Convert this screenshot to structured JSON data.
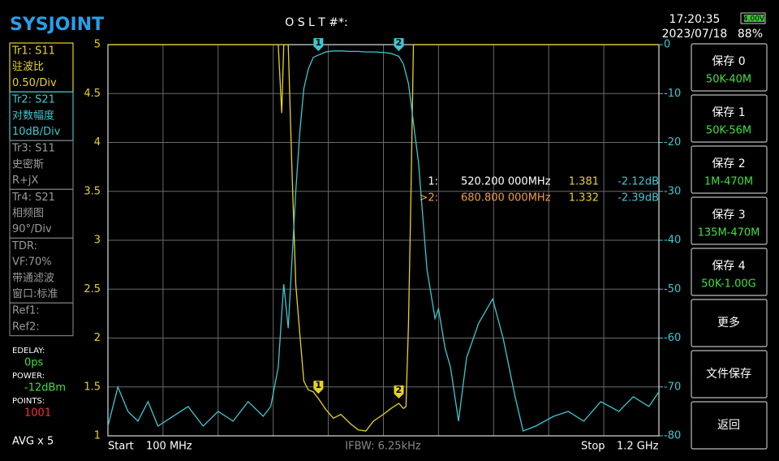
{
  "header": {
    "logo": "SYSJOINT",
    "status": "O S L T #*:",
    "time": "17:20:35",
    "date": "2023/07/18",
    "battery": "4.00V",
    "battery_level": "88%"
  },
  "left_panel": {
    "groups": [
      [
        "Tr1:   S11",
        "驻波比",
        "0.50/Div"
      ],
      [
        "Tr2:   S21",
        "对数幅度",
        "10dB/Div"
      ],
      [
        "Tr3:   S11",
        "史密斯",
        "R+jX"
      ],
      [
        "Tr4:   S21",
        "相频图",
        "90°/Div"
      ],
      [
        "TDR:",
        "VF:70%",
        "带通滤波",
        "窗口:标准"
      ],
      [
        "Ref1:",
        "Ref2:"
      ]
    ],
    "settings": [
      {
        "label": "EDELAY:",
        "value": "0ps"
      },
      {
        "label": "POWER:",
        "value": "-12dBm"
      },
      {
        "label": "POINTS:",
        "value": "1001"
      }
    ],
    "avg": "AVG x 5"
  },
  "buttons": [
    [
      "保存 0",
      "50K-40M"
    ],
    [
      "保存 1",
      "50K-56M"
    ],
    [
      "保存 2",
      "1M-470M"
    ],
    [
      "保存 3",
      "135M-470M"
    ],
    [
      "保存 4",
      "50K-1.00G"
    ],
    [
      "更多"
    ],
    [
      "文件保存"
    ],
    [
      "返回"
    ]
  ],
  "marker_table": {
    "rows": [
      [
        "1:",
        "520.200 000MHz",
        "1.381",
        "-2.12dB"
      ],
      [
        ">2:",
        "680.800 000MHz",
        "1.332",
        "-2.39dB"
      ]
    ]
  },
  "chart_data": {
    "type": "line",
    "x_start_label": "Start",
    "x_start": "100 MHz",
    "x_stop_label": "Stop",
    "x_stop": "1.2 GHz",
    "ifbw": "IFBW: 6.25kHz",
    "xlim": [
      100,
      1200
    ],
    "ylim": [
      1,
      5
    ],
    "yticks": [
      1,
      1.5,
      2,
      2.5,
      3,
      3.5,
      4,
      4.5,
      5
    ],
    "y2lim": [
      -80,
      0
    ],
    "y2ticks": [
      0,
      -10,
      -20,
      -30,
      -40,
      -50,
      -60,
      -70,
      -80
    ],
    "grid": true,
    "x": [
      100,
      120,
      140,
      160,
      180,
      200,
      230,
      260,
      290,
      320,
      350,
      380,
      410,
      425,
      440,
      447,
      451,
      460,
      467,
      475,
      483,
      491,
      500,
      510,
      520.2,
      535,
      550,
      565,
      585,
      600,
      615,
      630,
      650,
      665,
      680.8,
      690,
      695,
      700,
      705,
      710,
      720,
      737,
      753,
      760,
      773,
      784,
      800,
      816,
      840,
      868,
      889,
      913,
      929,
      954,
      990,
      1019,
      1050,
      1084,
      1120,
      1149,
      1180,
      1200
    ],
    "series": [
      {
        "color": "#e8d321",
        "values": [
          5,
          5,
          5,
          5,
          5,
          5,
          5,
          5,
          5,
          5,
          5,
          5,
          5,
          5,
          5,
          4.3,
          5,
          5,
          3.8,
          2.55,
          2.05,
          1.56,
          1.47,
          1.45,
          1.381,
          1.27,
          1.18,
          1.22,
          1.12,
          1.06,
          1.05,
          1.15,
          1.22,
          1.28,
          1.332,
          1.28,
          1.3,
          2.14,
          3.5,
          5,
          5,
          5,
          5,
          5,
          5,
          5,
          5,
          5,
          5,
          5,
          5,
          5,
          5,
          5,
          5,
          5,
          5,
          5,
          5,
          5,
          5,
          5
        ]
      },
      {
        "color": "#3cc8d0",
        "axis": "y2",
        "values": [
          -78,
          -70,
          -75,
          -77,
          -73,
          -78,
          -76,
          -74,
          -78,
          -75,
          -77,
          -73,
          -76,
          -74,
          -66,
          -55,
          -49,
          -58,
          -45,
          -30,
          -18,
          -9,
          -5,
          -2.6,
          -2.12,
          -1.5,
          -1.3,
          -1.3,
          -1.4,
          -1.4,
          -1.5,
          -1.5,
          -1.6,
          -1.8,
          -2.39,
          -4,
          -6,
          -8,
          -12,
          -16,
          -24,
          -46,
          -56,
          -54,
          -62,
          -66,
          -77,
          -64,
          -57,
          -52,
          -60,
          -72,
          -79,
          -78,
          -76,
          -75,
          -77,
          -73,
          -75,
          -72,
          -74,
          -71
        ]
      }
    ],
    "markers": [
      {
        "label": "1",
        "x": 520.2,
        "swr": 1.381
      },
      {
        "label": "2",
        "x": 680.8,
        "swr": 1.332
      }
    ]
  }
}
